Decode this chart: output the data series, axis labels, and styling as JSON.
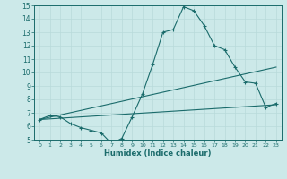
{
  "xlabel": "Humidex (Indice chaleur)",
  "xlim": [
    -0.5,
    23.5
  ],
  "ylim": [
    5,
    15
  ],
  "bg_color": "#cce9e9",
  "grid_color": "#aad4d4",
  "line_color": "#1a6b6b",
  "line1_x": [
    0,
    1,
    2,
    3,
    4,
    5,
    6,
    7,
    8,
    9,
    10,
    11,
    12,
    13,
    14,
    15,
    16,
    17,
    18,
    19,
    20,
    21,
    22,
    23
  ],
  "line1_y": [
    6.5,
    6.8,
    6.7,
    6.2,
    5.9,
    5.7,
    5.5,
    4.7,
    5.1,
    6.7,
    8.4,
    10.6,
    13.0,
    13.2,
    14.9,
    14.6,
    13.5,
    12.0,
    11.7,
    10.4,
    9.3,
    9.2,
    7.4,
    7.7
  ],
  "line2_x": [
    0,
    23
  ],
  "line2_y": [
    6.5,
    10.4
  ],
  "line3_x": [
    0,
    23
  ],
  "line3_y": [
    6.5,
    7.6
  ]
}
